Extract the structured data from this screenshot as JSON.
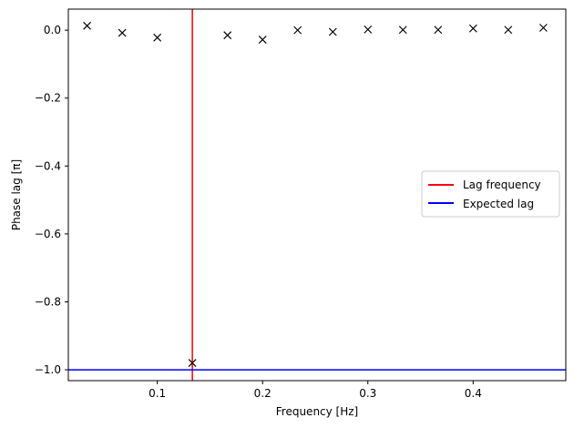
{
  "chart_data": {
    "type": "scatter",
    "xlabel": "Frequency [Hz]",
    "ylabel": "Phase lag [π]",
    "xlim": [
      0.0155,
      0.488
    ],
    "ylim": [
      -1.032,
      0.062
    ],
    "xticks": [
      0.1,
      0.2,
      0.3,
      0.4
    ],
    "xtick_labels": [
      "0.1",
      "0.2",
      "0.3",
      "0.4"
    ],
    "yticks": [
      0.0,
      -0.2,
      -0.4,
      -0.6,
      -0.8,
      -1.0
    ],
    "ytick_labels": [
      "0.0",
      "−0.2",
      "−0.4",
      "−0.6",
      "−0.8",
      "−1.0"
    ],
    "grid": false,
    "series": [
      {
        "marker": "x",
        "color": "#000000",
        "x": [
          0.0333,
          0.0667,
          0.1,
          0.1333,
          0.1667,
          0.2,
          0.2333,
          0.2667,
          0.3,
          0.3333,
          0.3667,
          0.4,
          0.4333,
          0.4667
        ],
        "y": [
          0.013,
          -0.008,
          -0.022,
          -0.98,
          -0.015,
          -0.028,
          0.0,
          -0.005,
          0.002,
          0.001,
          0.001,
          0.005,
          0.001,
          0.007
        ]
      }
    ],
    "vlines": [
      {
        "name": "Lag frequency",
        "x": 0.1333,
        "color": "#ff0000"
      }
    ],
    "hlines": [
      {
        "name": "Expected lag",
        "y": -1.0,
        "color": "#0000ff"
      }
    ],
    "legend": {
      "placement": "center-right",
      "entries": [
        {
          "label": "Lag frequency",
          "color": "#ff0000"
        },
        {
          "label": "Expected lag",
          "color": "#0000ff"
        }
      ]
    }
  }
}
